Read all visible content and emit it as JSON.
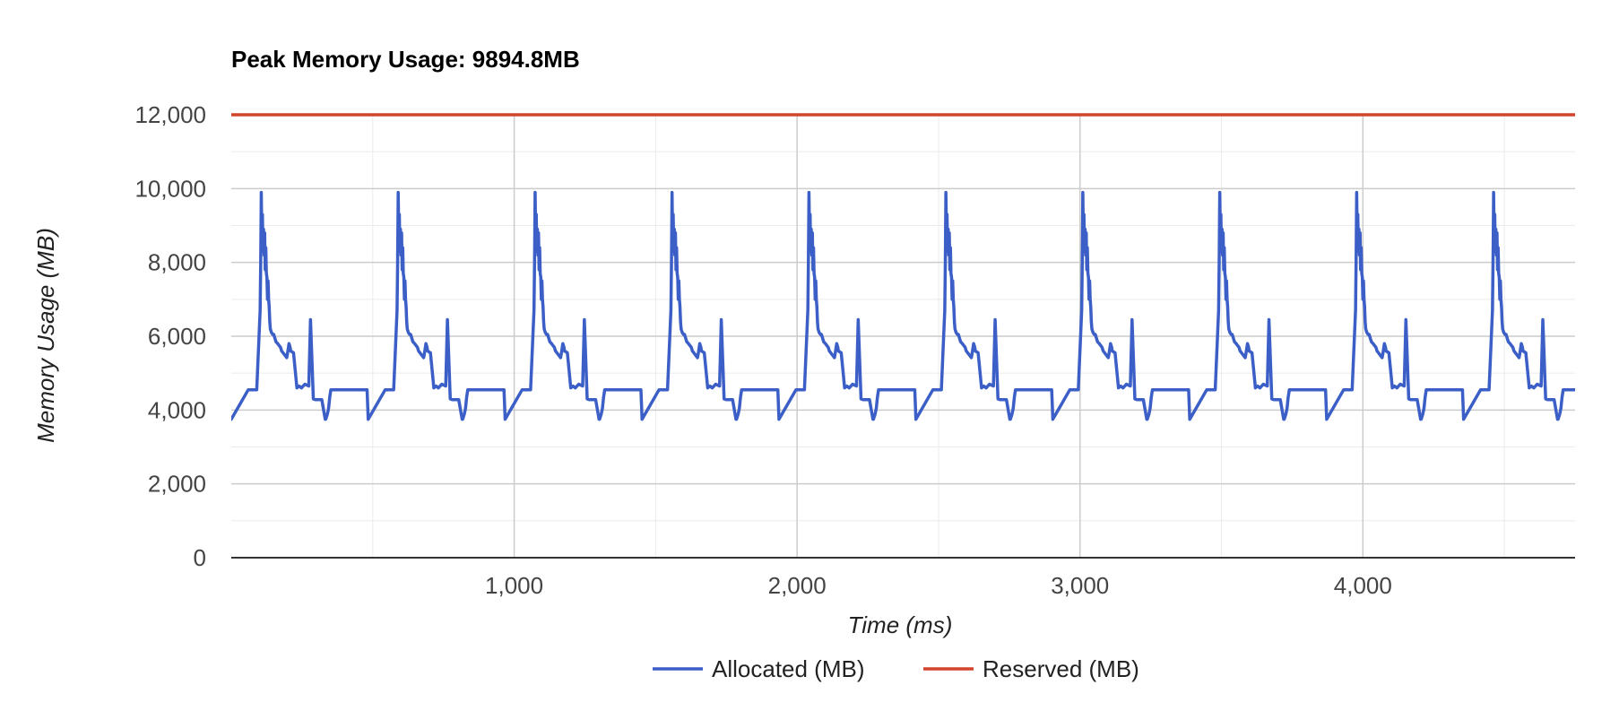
{
  "chart_data": {
    "type": "line",
    "title": "Peak Memory Usage: 9894.8MB",
    "xlabel": "Time (ms)",
    "ylabel": "Memory Usage (MB)",
    "xlim": [
      0,
      4750
    ],
    "ylim": [
      0,
      12000
    ],
    "x_ticks": [
      1000,
      2000,
      3000,
      4000
    ],
    "x_tick_labels": [
      "1,000",
      "2,000",
      "3,000",
      "4,000"
    ],
    "y_ticks": [
      0,
      2000,
      4000,
      6000,
      8000,
      10000,
      12000
    ],
    "y_tick_labels": [
      "0",
      "2,000",
      "4,000",
      "6,000",
      "8,000",
      "10,000",
      "12,000"
    ],
    "grid": true,
    "legend_position": "bottom",
    "iteration_period_ms": 484,
    "iteration_count": 10,
    "allocated_cycle": {
      "x_offsets": [
        0,
        60,
        62,
        68,
        82,
        88,
        90,
        102,
        104,
        106,
        108,
        110,
        112,
        114,
        116,
        118,
        120,
        122,
        124,
        126,
        128,
        130,
        132,
        134,
        136,
        138,
        140,
        142,
        144,
        146,
        148,
        150,
        152,
        154,
        156,
        158,
        164,
        166,
        168,
        170,
        172,
        174,
        176,
        178,
        180,
        182,
        184,
        186,
        188,
        190,
        192,
        194,
        196,
        198,
        200,
        202,
        204,
        206,
        208,
        210,
        220,
        232,
        240,
        248,
        260,
        274,
        280,
        290,
        298,
        312,
        318,
        320,
        332,
        334,
        340,
        344,
        346,
        348,
        350,
        352,
        356,
        360,
        364,
        366,
        368,
        372,
        380,
        400,
        402,
        406,
        410,
        414,
        418,
        422,
        426,
        430,
        436,
        438,
        448,
        460,
        480
      ],
      "values": [
        3750,
        4550,
        4550,
        4550,
        4550,
        4550,
        4550,
        6700,
        8000,
        9894.8,
        8700,
        9300,
        8300,
        8900,
        8200,
        8800,
        7800,
        8400,
        7700,
        7600,
        7000,
        7500,
        7000,
        6800,
        6400,
        6200,
        6150,
        6100,
        6080,
        6050,
        6050,
        6050,
        6000,
        5950,
        5900,
        5850,
        5800,
        5780,
        5760,
        5740,
        5720,
        5700,
        5650,
        5600,
        5580,
        5560,
        5540,
        5520,
        5500,
        5480,
        5460,
        5440,
        5420,
        5500,
        5600,
        5700,
        5800,
        5750,
        5700,
        5600,
        5550,
        4600,
        4650,
        4600,
        4700,
        4650,
        6450,
        4300,
        4280,
        4280,
        4280,
        4280,
        3750,
        3750,
        3900,
        4050,
        4200,
        4350,
        4450,
        4550,
        4550,
        4550,
        4550,
        4550,
        4550,
        4550,
        4550,
        4550,
        4550,
        4550,
        4550,
        4550,
        4550,
        4550,
        4550,
        4550,
        4550,
        4550,
        4550,
        4550,
        4550
      ]
    },
    "series": [
      {
        "name": "Allocated (MB)",
        "color": "#3b5fc7"
      },
      {
        "name": "Reserved (MB)",
        "color": "#d2442b",
        "values": [
          12000,
          12000
        ],
        "x": [
          0,
          4750
        ]
      }
    ]
  }
}
